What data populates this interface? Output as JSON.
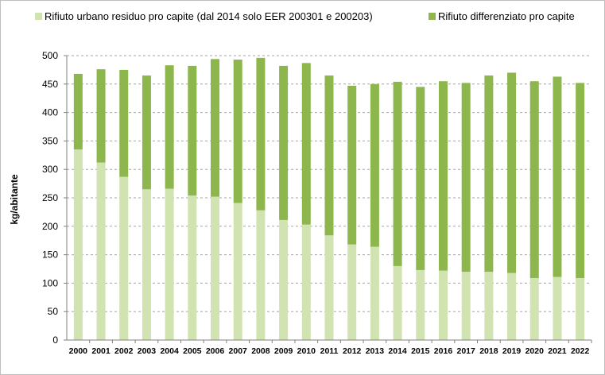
{
  "chart_data": {
    "type": "bar",
    "stacked": true,
    "title": "",
    "xlabel": "",
    "ylabel": "kg/abitante",
    "ylim": [
      0,
      500
    ],
    "yticks": [
      0,
      50,
      100,
      150,
      200,
      250,
      300,
      350,
      400,
      450,
      500
    ],
    "grid": "horizontal dashed",
    "legend": "top",
    "categories": [
      "2000",
      "2001",
      "2002",
      "2003",
      "2004",
      "2005",
      "2006",
      "2007",
      "2008",
      "2009",
      "2010",
      "2011",
      "2012",
      "2013",
      "2014",
      "2015",
      "2016",
      "2017",
      "2018",
      "2019",
      "2020",
      "2021",
      "2022"
    ],
    "series": [
      {
        "name": "Rifiuto urbano residuo pro capite  (dal 2014 solo EER 200301 e 200203)",
        "color": "#d0e3b1",
        "values": [
          335,
          312,
          287,
          265,
          266,
          254,
          252,
          241,
          228,
          211,
          203,
          184,
          168,
          164,
          130,
          123,
          122,
          120,
          120,
          118,
          109,
          111,
          109
        ]
      },
      {
        "name": "Rifiuto differenziato pro capite",
        "color": "#8db64d",
        "values": [
          133,
          164,
          188,
          200,
          217,
          228,
          242,
          252,
          268,
          271,
          284,
          281,
          279,
          286,
          324,
          322,
          333,
          332,
          345,
          352,
          346,
          352,
          343
        ]
      }
    ]
  }
}
